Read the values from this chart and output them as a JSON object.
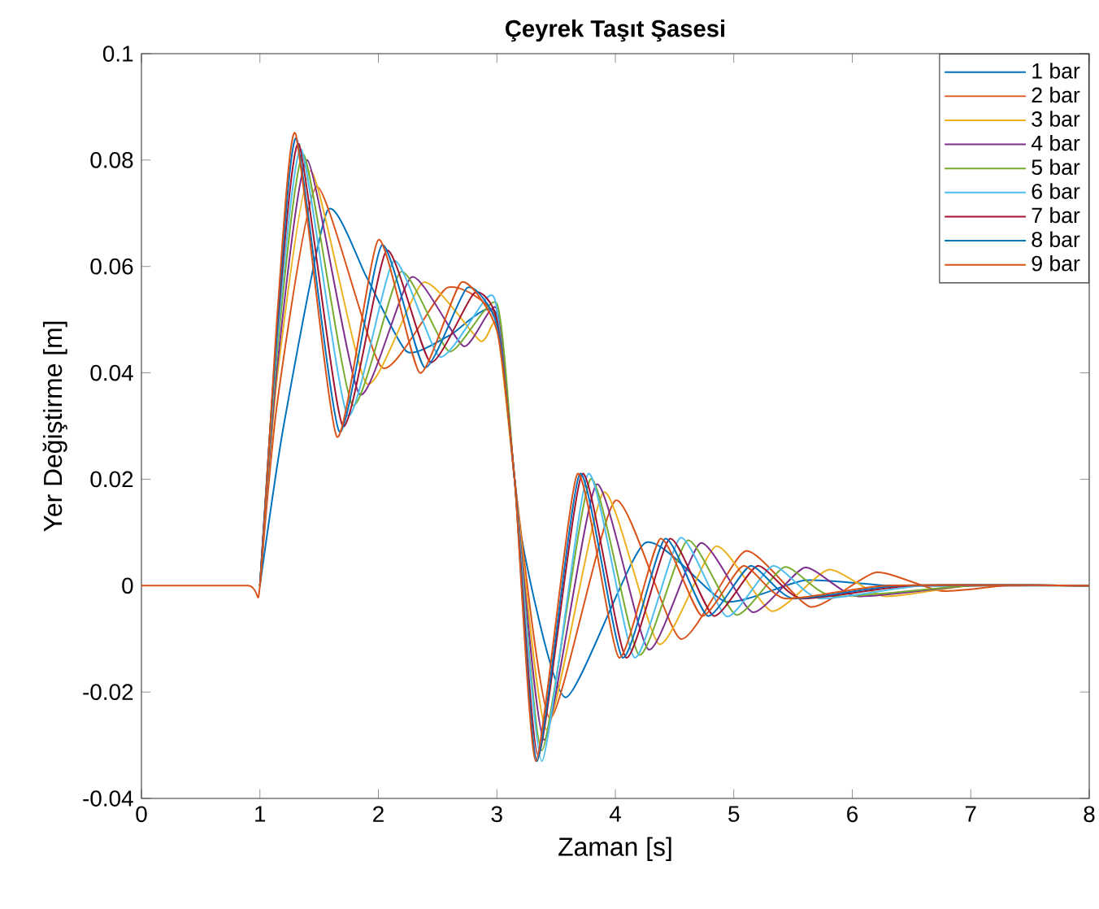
{
  "chart_data": {
    "type": "line",
    "title": "Çeyrek Taşıt Şasesi",
    "xlabel": "Zaman [s]",
    "ylabel": "Yer Değiştirme [m]",
    "xlim": [
      0,
      8
    ],
    "ylim": [
      -0.04,
      0.1
    ],
    "xticks": [
      0,
      1,
      2,
      3,
      4,
      5,
      6,
      7,
      8
    ],
    "yticks": [
      -0.04,
      -0.02,
      0,
      0.02,
      0.04,
      0.06,
      0.08,
      0.1
    ],
    "legend": "top right",
    "series": [
      {
        "name": "1 bar",
        "color": "#0072bd",
        "x": [
          1,
          1.2,
          1.57,
          1.9,
          2.24,
          2.6,
          3.0,
          3.2,
          3.58,
          4.25,
          4.93,
          5.6,
          6.3,
          7,
          8
        ],
        "values": [
          0,
          0.03,
          0.0705,
          0.058,
          0.044,
          0.047,
          0.051,
          0.01,
          -0.021,
          0.008,
          -0.003,
          0.001,
          0,
          0,
          0
        ]
      },
      {
        "name": "2 bar",
        "color": "#d95319",
        "x": [
          1,
          1.15,
          1.48,
          2.03,
          2.58,
          3.0,
          3.15,
          3.45,
          4.0,
          4.55,
          5.1,
          5.65,
          6.2,
          6.75,
          7.3,
          8
        ],
        "values": [
          0,
          0.035,
          0.075,
          0.041,
          0.056,
          0.05,
          0.02,
          -0.025,
          0.016,
          -0.01,
          0.0065,
          -0.004,
          0.0025,
          -0.001,
          0,
          0
        ]
      },
      {
        "name": "3 bar",
        "color": "#edb120",
        "x": [
          1,
          1.15,
          1.43,
          1.9,
          2.38,
          2.86,
          3.0,
          3.15,
          3.42,
          3.9,
          4.37,
          4.85,
          5.32,
          5.8,
          6.27,
          7,
          8
        ],
        "values": [
          0,
          0.04,
          0.078,
          0.038,
          0.057,
          0.046,
          0.049,
          0.02,
          -0.027,
          0.0175,
          -0.011,
          0.0074,
          -0.0048,
          0.003,
          -0.002,
          0,
          0
        ]
      },
      {
        "name": "4 bar",
        "color": "#7e2f8e",
        "x": [
          1,
          1.15,
          1.4,
          1.84,
          2.28,
          2.72,
          3.0,
          3.15,
          3.4,
          3.84,
          4.28,
          4.72,
          5.16,
          5.6,
          6.04,
          7,
          8
        ],
        "values": [
          0,
          0.042,
          0.08,
          0.036,
          0.058,
          0.045,
          0.052,
          0.02,
          -0.029,
          0.019,
          -0.012,
          0.008,
          -0.005,
          0.0034,
          -0.002,
          0,
          0
        ]
      },
      {
        "name": "5 bar",
        "color": "#77ac30",
        "x": [
          1,
          1.15,
          1.37,
          1.78,
          2.19,
          2.6,
          3.0,
          3.15,
          3.38,
          3.79,
          4.2,
          4.61,
          5.02,
          5.43,
          5.84,
          7,
          8
        ],
        "values": [
          0,
          0.045,
          0.081,
          0.034,
          0.059,
          0.044,
          0.053,
          0.02,
          -0.031,
          0.02,
          -0.013,
          0.0085,
          -0.0055,
          0.0035,
          -0.002,
          0,
          0
        ]
      },
      {
        "name": "6 bar",
        "color": "#4dbeee",
        "x": [
          1,
          1.15,
          1.35,
          1.74,
          2.13,
          2.52,
          2.91,
          3.0,
          3.15,
          3.38,
          3.77,
          4.16,
          4.55,
          4.94,
          5.33,
          5.72,
          6.6,
          8
        ],
        "values": [
          0,
          0.047,
          0.082,
          0.032,
          0.061,
          0.043,
          0.054,
          0.052,
          0.02,
          -0.033,
          0.021,
          -0.0135,
          0.009,
          -0.0058,
          0.0037,
          -0.0024,
          0,
          0
        ]
      },
      {
        "name": "7 bar",
        "color": "#a2142f",
        "x": [
          1,
          1.15,
          1.33,
          1.7,
          2.07,
          2.44,
          2.81,
          3.0,
          3.15,
          3.35,
          3.72,
          4.09,
          4.46,
          4.83,
          5.2,
          5.57,
          6.5,
          8
        ],
        "values": [
          0,
          0.049,
          0.083,
          0.03,
          0.063,
          0.042,
          0.055,
          0.05,
          0.02,
          -0.032,
          0.021,
          -0.0135,
          0.0088,
          -0.0057,
          0.0037,
          -0.0024,
          0,
          0
        ]
      },
      {
        "name": "8 bar",
        "color": "#0072bd",
        "x": [
          1,
          1.15,
          1.31,
          1.67,
          2.03,
          2.39,
          2.75,
          3.0,
          3.15,
          3.34,
          3.7,
          4.06,
          4.42,
          4.78,
          5.14,
          5.5,
          6.4,
          8
        ],
        "values": [
          0,
          0.05,
          0.084,
          0.029,
          0.064,
          0.041,
          0.056,
          0.049,
          0.02,
          -0.033,
          0.021,
          -0.0135,
          0.0088,
          -0.0057,
          0.0037,
          -0.0024,
          0,
          0
        ]
      },
      {
        "name": "9 bar",
        "color": "#d95319",
        "x": [
          0,
          0.9,
          1,
          1.15,
          1.3,
          1.65,
          2.0,
          2.35,
          2.7,
          3.0,
          3.15,
          3.33,
          3.68,
          4.03,
          4.38,
          4.73,
          5.08,
          5.43,
          6.3,
          8
        ],
        "values": [
          0,
          0,
          0,
          0.052,
          0.085,
          0.028,
          0.065,
          0.04,
          0.057,
          0.048,
          0.02,
          -0.033,
          0.021,
          -0.0135,
          0.0088,
          -0.0057,
          0.0037,
          -0.0024,
          0,
          0
        ]
      }
    ]
  }
}
